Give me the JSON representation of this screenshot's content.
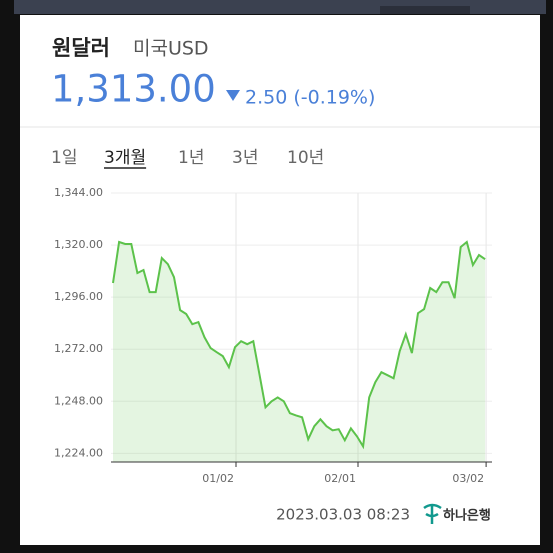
{
  "header": {
    "title": "원달러",
    "subtitle": "미국USD",
    "price": "1,313.00",
    "change": "2.50 (-0.19%)"
  },
  "tabs": [
    "1일",
    "3개월",
    "1년",
    "3년",
    "10년"
  ],
  "active_tab": 1,
  "footer": {
    "timestamp": "2023.03.03  08:23",
    "source": "하나은행"
  },
  "chart_data": {
    "type": "area",
    "grid": true,
    "categories": [
      null,
      null,
      null,
      null,
      null,
      null,
      null,
      null,
      null,
      null,
      null,
      null,
      null,
      null,
      null,
      null,
      null,
      null,
      null,
      null,
      "01/02",
      null,
      null,
      null,
      null,
      null,
      null,
      null,
      null,
      null,
      null,
      null,
      null,
      null,
      null,
      null,
      null,
      null,
      null,
      null,
      "02/01",
      null,
      null,
      null,
      null,
      null,
      null,
      null,
      null,
      null,
      null,
      null,
      null,
      null,
      null,
      null,
      null,
      null,
      null,
      null,
      null,
      "03/02"
    ],
    "series": [
      {
        "color": "#5cc24b",
        "values": [
          1302.5,
          1321.4,
          1320.5,
          1320.5,
          1307.1,
          1308.5,
          1298.3,
          1298.3,
          1314.0,
          1311.2,
          1305.2,
          1290.0,
          1288.2,
          1283.5,
          1284.5,
          1277.5,
          1272.5,
          1270.6,
          1268.8,
          1263.7,
          1272.9,
          1275.7,
          1274.3,
          1275.7,
          1260.5,
          1245.2,
          1248.0,
          1249.8,
          1248.0,
          1242.5,
          1241.5,
          1240.6,
          1230.5,
          1236.5,
          1239.7,
          1236.5,
          1234.6,
          1235.1,
          1230.0,
          1235.5,
          1231.8,
          1227.2,
          1249.8,
          1256.8,
          1261.4,
          1260.0,
          1258.6,
          1271.1,
          1278.9,
          1270.2,
          1288.6,
          1290.5,
          1300.2,
          1298.3,
          1302.9,
          1302.9,
          1295.5,
          1319.1,
          1321.4,
          1310.8,
          1315.4,
          1313.5
        ]
      }
    ],
    "ylim": [
      1220,
      1344
    ],
    "yticks": [
      {
        "value": 1224,
        "label": "1,224.00"
      },
      {
        "value": 1248,
        "label": "1,248.00"
      },
      {
        "value": 1272,
        "label": "1,272.00"
      },
      {
        "value": 1296,
        "label": "1,296.00"
      },
      {
        "value": 1320,
        "label": "1,320.00"
      },
      {
        "value": 1344,
        "label": "1,344.00"
      }
    ]
  }
}
